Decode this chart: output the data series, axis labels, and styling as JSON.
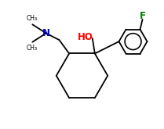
{
  "background": "#ffffff",
  "bond_color": "#000000",
  "N_color": "#0000cc",
  "O_color": "#ff0000",
  "F_color": "#008000",
  "lw": 1.3,
  "figsize": [
    2.09,
    1.65
  ],
  "dpi": 100,
  "xlim": [
    0,
    10
  ],
  "ylim": [
    0,
    8
  ]
}
